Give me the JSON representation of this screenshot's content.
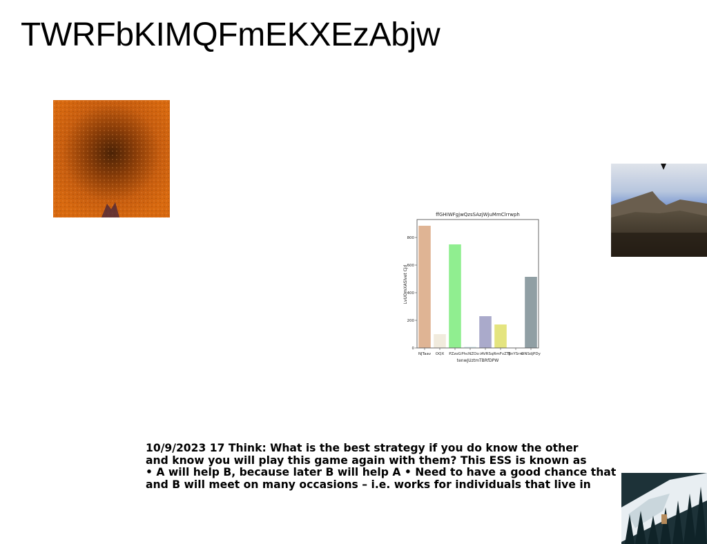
{
  "page": {
    "title": "TWRFbKIMQFmEKXEzAbjw"
  },
  "images": [
    {
      "name": "orange-texture-photo"
    },
    {
      "name": "mountain-landscape-photo"
    },
    {
      "name": "snowy-forest-photo"
    }
  ],
  "text_block": {
    "lines": [
      "10/9/2023 17 Think: What is the best strategy if you do know the other",
      "and know you will play this game again with them? This ESS is known as",
      "• A will help B, because later B will help A • Need to have a good chance that",
      "and B will meet on many occasions – i.e. works for individuals that live in"
    ]
  },
  "chart_data": {
    "type": "bar",
    "title": "ffGHIWFgjwQzsSAzjWjuMmClrrwph",
    "xlabel": "tenwJUztmTBRfDPW",
    "ylabel": "LvUOmXASlvet Cjd",
    "categories": [
      "NJTaav",
      "OQX",
      "PZzoG",
      "PhcNZOo",
      "iAVRS",
      "qRmFvZTJ",
      "BnYSrm",
      "DNSdjPDy"
    ],
    "values": [
      885,
      100,
      750,
      10,
      230,
      170,
      0,
      515
    ],
    "colors": [
      "#dfb494",
      "#f1ebdd",
      "#90ee90",
      "#e2f0f4",
      "#aaaacb",
      "#e4e47f",
      "#ffffff",
      "#909fa4"
    ],
    "yticks": [
      0,
      200,
      400,
      600,
      800
    ],
    "ylim": [
      0,
      930
    ],
    "grid": false
  }
}
